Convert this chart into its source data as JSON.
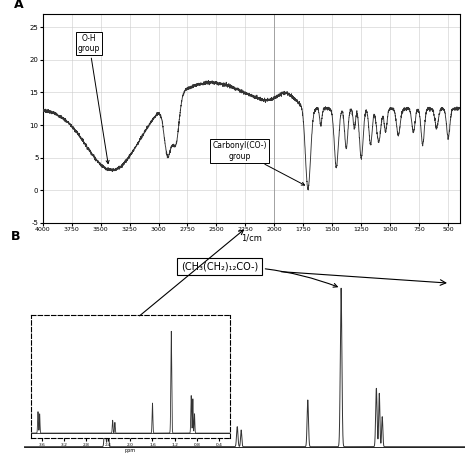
{
  "panel_A_label": "A",
  "panel_B_label": "B",
  "ftir_xlabel": "1/cm",
  "ftir_xlim": [
    4000,
    400
  ],
  "ftir_ylim": [
    -5,
    27
  ],
  "ftir_yticks": [
    -5,
    0,
    5,
    10,
    15,
    20,
    25
  ],
  "ftir_xticks": [
    4000,
    3750,
    3500,
    3250,
    3000,
    2750,
    2500,
    2250,
    2000,
    1750,
    1500,
    1250,
    1000,
    750,
    500
  ],
  "annotation_oh": "O-H\ngroup",
  "annotation_co": "Carbonyl(CO-)\ngroup",
  "nmr_annotation": "(CH₃(CH₂)₁₂CO-)",
  "bg_color": "#ffffff",
  "line_color": "#333333",
  "grid_color": "#cccccc"
}
